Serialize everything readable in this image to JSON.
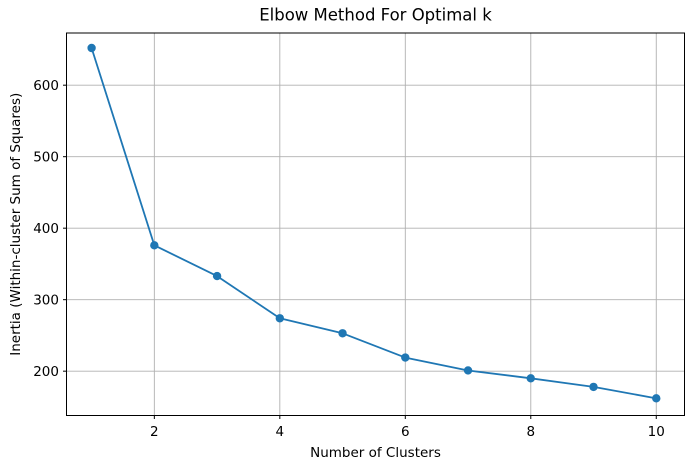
{
  "figure": {
    "background": "#ffffff"
  },
  "chart_data": {
    "type": "line",
    "title": "Elbow Method For Optimal k",
    "xlabel": "Number of Clusters",
    "ylabel": "Inertia (Within-cluster Sum of Squares)",
    "series": [
      {
        "name": "inertia",
        "x": [
          1,
          2,
          3,
          4,
          5,
          6,
          7,
          8,
          9,
          10
        ],
        "y": [
          652,
          376,
          333,
          274,
          253,
          219,
          201,
          190,
          178,
          162
        ],
        "color": "#1f77b4",
        "marker": "circle"
      }
    ],
    "xticks": [
      2,
      4,
      6,
      8,
      10
    ],
    "yticks": [
      200,
      300,
      400,
      500,
      600
    ],
    "xlim": [
      0.6,
      10.45
    ],
    "ylim": [
      138,
      673
    ],
    "grid": true,
    "grid_color": "#b0b0b0",
    "spine_color": "#000000",
    "text_color": "#000000",
    "legend": false
  }
}
